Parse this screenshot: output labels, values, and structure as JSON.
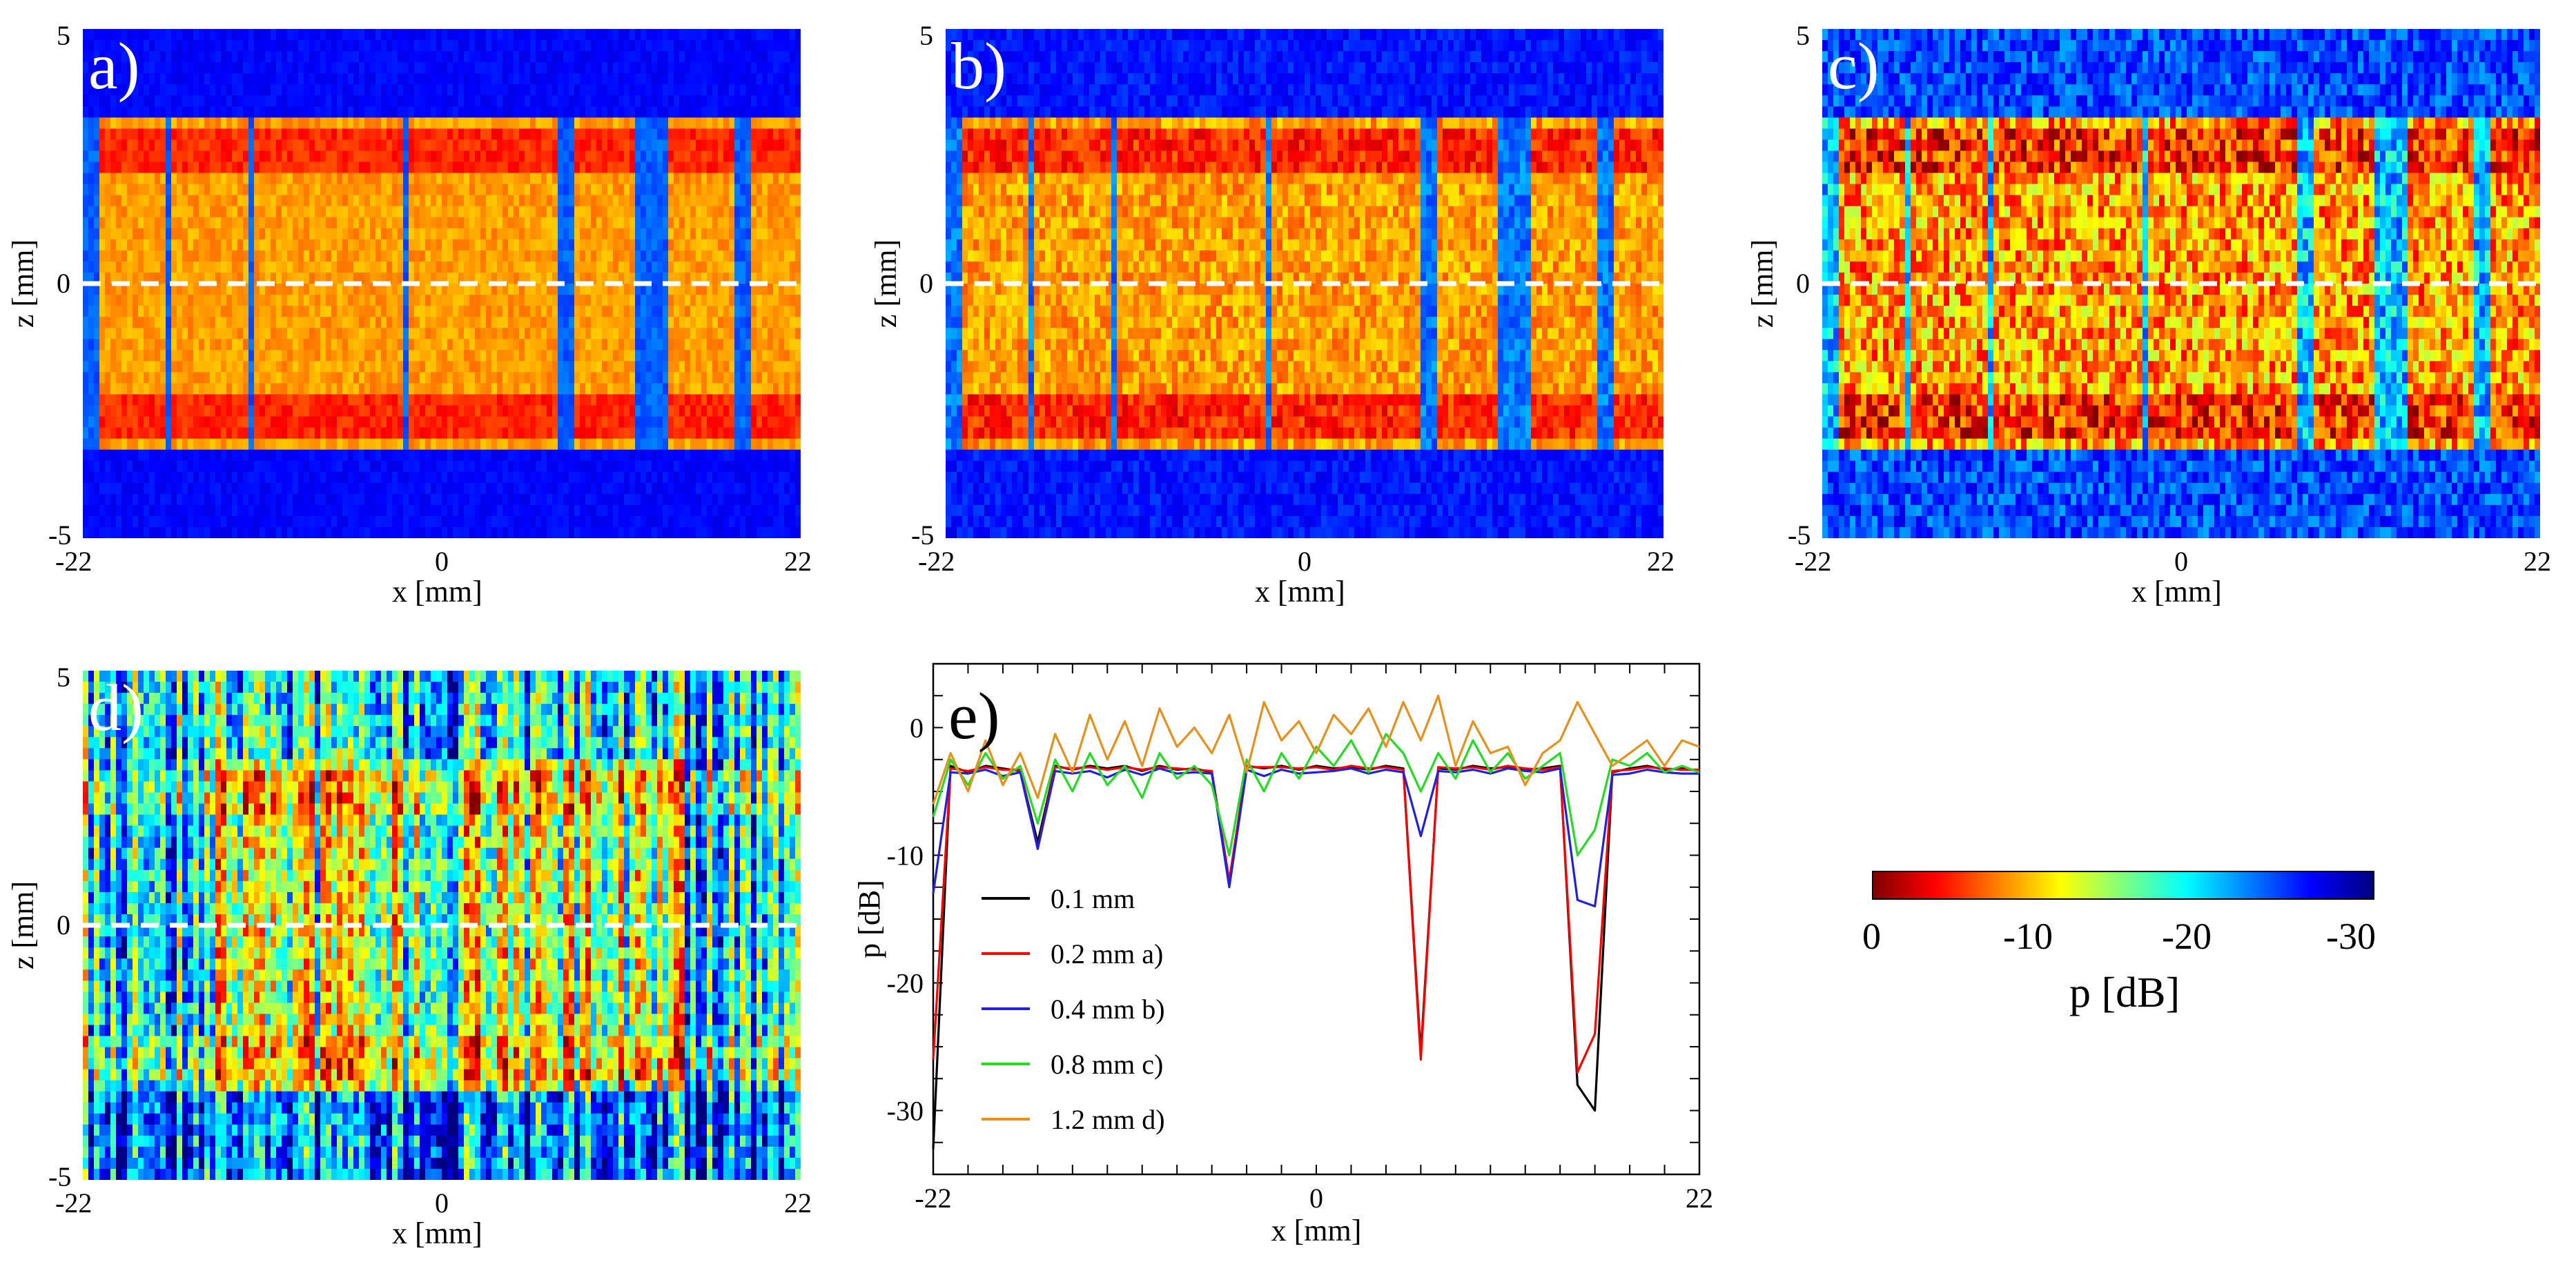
{
  "colors": {
    "jet_low": "#00007f",
    "jet_mid": "#1fe6d4",
    "jet_high": "#7f0000",
    "dash_line": "#ffffff",
    "series_black": "#000000",
    "series_red": "#ff0000",
    "series_blue": "#2020e0",
    "series_green": "#22dd22",
    "series_orange": "#e8901c"
  },
  "heatmaps": [
    {
      "id": "a",
      "letter": "a)",
      "style": "blocks",
      "xlabel": "x [mm]",
      "ylabel": "z [mm]",
      "xticks": [
        "-22",
        "0",
        "22"
      ],
      "yticks": [
        "5",
        "0",
        "-5"
      ],
      "blocks_x_mm": [
        [
          -21,
          -17
        ],
        [
          -16.5,
          -12
        ],
        [
          -11.5,
          -2.5
        ],
        [
          -2,
          7
        ],
        [
          8,
          12
        ],
        [
          14,
          18
        ],
        [
          19,
          22
        ]
      ],
      "noise": 0.15
    },
    {
      "id": "b",
      "letter": "b)",
      "style": "blocks",
      "xlabel": "x [mm]",
      "ylabel": "z [mm]",
      "xticks": [
        "-22",
        "0",
        "22"
      ],
      "yticks": [
        "5",
        "0",
        "-5"
      ],
      "blocks_x_mm": [
        [
          -21,
          -17
        ],
        [
          -16.5,
          -12
        ],
        [
          -11.5,
          -2.5
        ],
        [
          -2,
          7
        ],
        [
          8,
          12
        ],
        [
          14,
          18
        ],
        [
          19,
          22
        ]
      ],
      "noise": 0.25
    },
    {
      "id": "c",
      "letter": "c)",
      "style": "blocks",
      "xlabel": "x [mm]",
      "ylabel": "z [mm]",
      "xticks": [
        "-22",
        "0",
        "22"
      ],
      "yticks": [
        "5",
        "0",
        "-5"
      ],
      "blocks_x_mm": [
        [
          -21,
          -17
        ],
        [
          -16.5,
          -12
        ],
        [
          -11.5,
          -2.5
        ],
        [
          -2,
          7
        ],
        [
          8,
          12
        ],
        [
          14,
          18
        ],
        [
          19,
          22
        ]
      ],
      "noise": 0.55
    },
    {
      "id": "d",
      "letter": "d)",
      "style": "noisy",
      "xlabel": "x [mm]",
      "ylabel": "z [mm]",
      "xticks": [
        "-22",
        "0",
        "22"
      ],
      "yticks": [
        "5",
        "0",
        "-5"
      ],
      "blocks_x_mm": [
        [
          -14,
          15
        ]
      ],
      "noise": 0.9
    }
  ],
  "chart_data": {
    "type": "line",
    "letter": "e)",
    "xlabel": "x [mm]",
    "ylabel": "p [dB]",
    "xlim": [
      -22,
      22
    ],
    "ylim": [
      -35,
      5
    ],
    "xticks": [
      "-22",
      "0",
      "22"
    ],
    "yticks": [
      "0",
      "-10",
      "-20",
      "-30"
    ],
    "ytick_values": [
      0,
      -10,
      -20,
      -30
    ],
    "x": [
      -22,
      -21,
      -20,
      -19,
      -18,
      -17,
      -16,
      -15,
      -14,
      -13,
      -12,
      -11,
      -10,
      -9,
      -8,
      -7,
      -6,
      -5,
      -4,
      -3,
      -2,
      -1,
      0,
      1,
      2,
      3,
      4,
      5,
      6,
      7,
      8,
      9,
      10,
      11,
      12,
      13,
      14,
      15,
      16,
      17,
      18,
      19,
      20,
      21,
      22
    ],
    "series": [
      {
        "name": "0.1 mm",
        "colorKey": "series_black",
        "values": [
          -33,
          -3,
          -3.5,
          -3,
          -3.2,
          -3.4,
          -9,
          -3,
          -3.3,
          -3,
          -3.2,
          -3,
          -3.4,
          -3,
          -3.3,
          -3.2,
          -3.5,
          -12,
          -3,
          -3.2,
          -3,
          -3.3,
          -3,
          -3.2,
          -3.1,
          -3.3,
          -3,
          -3.2,
          -25.5,
          -3.2,
          -3.3,
          -3,
          -3.2,
          -3.1,
          -3.3,
          -3.2,
          -3,
          -28,
          -30,
          -3.5,
          -3.2,
          -3,
          -3.3,
          -3.2,
          -3.4
        ]
      },
      {
        "name": "0.2 mm a)",
        "colorKey": "series_red",
        "values": [
          -26,
          -3.2,
          -3.4,
          -3.1,
          -3.3,
          -3.3,
          -9.5,
          -3.1,
          -3.2,
          -3.1,
          -3.3,
          -3.1,
          -3.3,
          -3.1,
          -3.2,
          -3.3,
          -3.4,
          -12,
          -3.1,
          -3.1,
          -3.1,
          -3.2,
          -3.1,
          -3.3,
          -3,
          -3.2,
          -3.1,
          -3.3,
          -26,
          -3.1,
          -3.2,
          -3.1,
          -3.3,
          -3,
          -3.2,
          -3.3,
          -3.1,
          -27,
          -24,
          -3.4,
          -3.3,
          -3.1,
          -3.2,
          -3.3,
          -3.3
        ]
      },
      {
        "name": "0.4 mm b)",
        "colorKey": "series_blue",
        "values": [
          -13,
          -3.5,
          -3.6,
          -3.3,
          -3.8,
          -3.5,
          -9.5,
          -3.4,
          -3.6,
          -3.4,
          -3.9,
          -3.3,
          -3.7,
          -3.2,
          -3.6,
          -3.5,
          -3.6,
          -12.5,
          -3.3,
          -3.8,
          -3.3,
          -3.6,
          -3.5,
          -3.4,
          -3.2,
          -3.6,
          -3.3,
          -3.5,
          -8.5,
          -3.4,
          -3.5,
          -3.3,
          -3.6,
          -3.2,
          -3.4,
          -3.5,
          -3.2,
          -13.5,
          -14,
          -3.7,
          -3.6,
          -3.3,
          -3.5,
          -3.6,
          -3.6
        ]
      },
      {
        "name": "0.8 mm c)",
        "colorKey": "series_green",
        "values": [
          -7,
          -2.5,
          -4.5,
          -2,
          -4,
          -3,
          -7.5,
          -2.5,
          -5,
          -2,
          -4.5,
          -3,
          -5.5,
          -2,
          -4,
          -3,
          -4.5,
          -10,
          -2.5,
          -5,
          -2,
          -4,
          -1.5,
          -3,
          -1,
          -3.5,
          -0.5,
          -2,
          -5,
          -2,
          -4,
          -1,
          -3.5,
          -2,
          -4,
          -3,
          -2,
          -10,
          -8,
          -2.5,
          -3,
          -2,
          -3.5,
          -3,
          -3.5
        ]
      },
      {
        "name": "1.2 mm d)",
        "colorKey": "series_orange",
        "values": [
          -6,
          -2,
          -5,
          -1,
          -4.5,
          -2,
          -5.5,
          -0.5,
          -3.5,
          1,
          -2.5,
          0.5,
          -3,
          1.5,
          -1.5,
          0,
          -2,
          1,
          -3.5,
          2,
          -1,
          0.5,
          -2,
          1,
          -0.5,
          1.5,
          -1.5,
          2,
          -1,
          2.5,
          -3,
          0.5,
          -2,
          -1.5,
          -4.5,
          -2,
          -1,
          2,
          -0.5,
          -3,
          -2,
          -1,
          -3,
          -1,
          -1.5
        ]
      }
    ]
  },
  "colorbar": {
    "title": "p [dB]",
    "ticks": [
      "0",
      "-10",
      "-20",
      "-30"
    ],
    "min": 0,
    "max": -30
  }
}
